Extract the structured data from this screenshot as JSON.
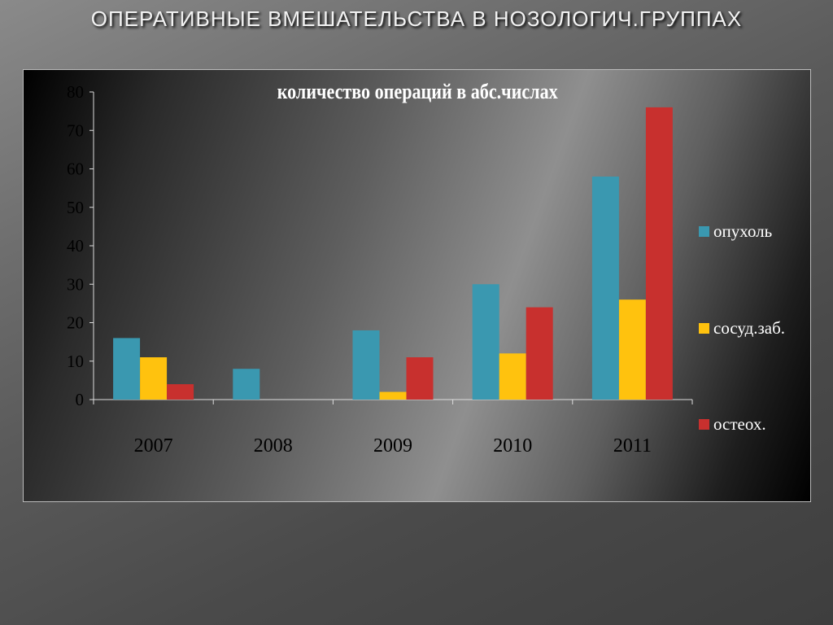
{
  "slide": {
    "title": "ОПЕРАТИВНЫЕ ВМЕШАТЕЛЬСТВА В НОЗОЛОГИЧ.ГРУППАХ"
  },
  "chart_data": {
    "type": "bar",
    "title": "количество операций  в абс.числах",
    "categories": [
      "2007",
      "2008",
      "2009",
      "2010",
      "2011"
    ],
    "series": [
      {
        "name": "опухоль",
        "color": "#3a98b0",
        "values": [
          16,
          8,
          18,
          30,
          58
        ]
      },
      {
        "name": "сосуд.заб.",
        "color": "#ffc20e",
        "values": [
          11,
          0,
          2,
          12,
          26
        ]
      },
      {
        "name": "остеох.",
        "color": "#c8302e",
        "values": [
          4,
          0,
          11,
          24,
          76
        ]
      }
    ],
    "ylim": [
      0,
      80
    ],
    "yticks": [
      "0",
      "10",
      "20",
      "30",
      "40",
      "50",
      "60",
      "70",
      "80"
    ],
    "legend_position": "right",
    "grid": false
  }
}
